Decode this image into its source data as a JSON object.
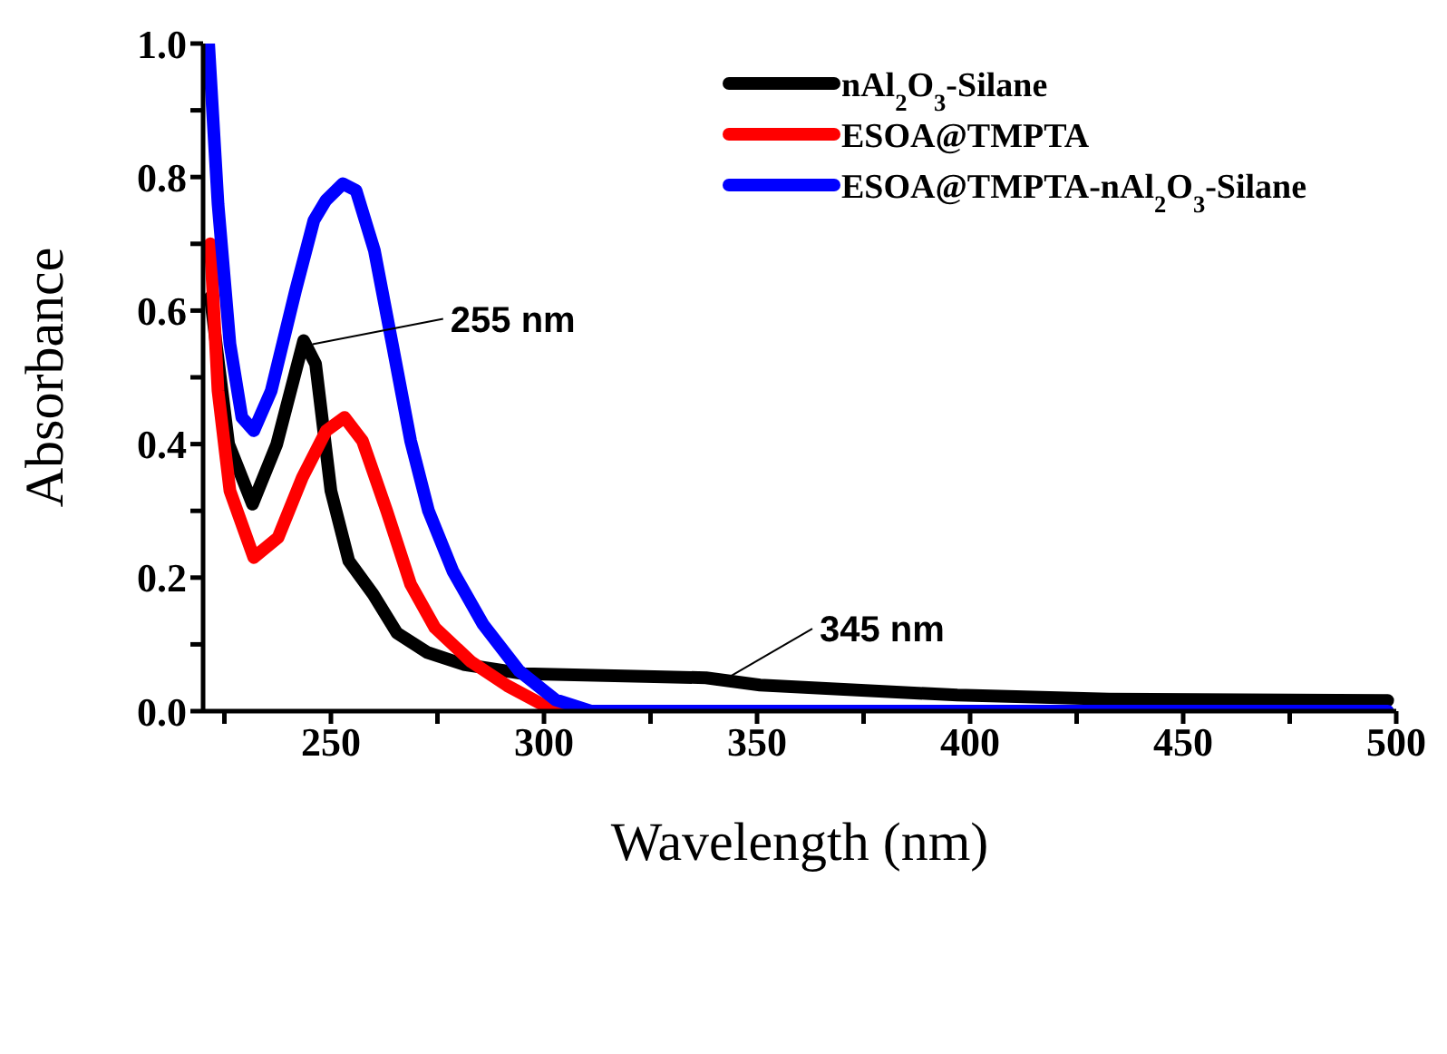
{
  "chart_data": {
    "type": "line",
    "xlabel": "Wavelength (nm)",
    "ylabel": "Absorbance",
    "xlim": [
      220,
      500
    ],
    "ylim": [
      0,
      1
    ],
    "xticks": [
      {
        "value": 225,
        "label": null
      },
      250,
      {
        "value": 275,
        "label": null
      },
      300,
      {
        "value": 325,
        "label": null
      },
      350,
      {
        "value": 375,
        "label": null
      },
      400,
      {
        "value": 425,
        "label": null
      },
      450,
      {
        "value": 475,
        "label": null
      },
      500
    ],
    "yticks": [
      {
        "value": 0,
        "label": "0.0"
      },
      {
        "value": 0.1,
        "label": null
      },
      0.2,
      {
        "value": 0.3,
        "label": null
      },
      0.4,
      {
        "value": 0.5,
        "label": null
      },
      0.6,
      {
        "value": 0.7,
        "label": null
      },
      0.8,
      {
        "value": 0.9,
        "label": null
      },
      {
        "value": 1,
        "label": "1.0"
      }
    ],
    "legend": "top right",
    "marker": "none",
    "line_style": "solid",
    "series": [
      {
        "name": "nAl$_{2}$O$_{3}$-Silane",
        "color": "#000000",
        "x": [
          221.7,
          226,
          231.6,
          237.3,
          243.6,
          246.4,
          250,
          254.2,
          259.9,
          265.5,
          272.6,
          281.1,
          295.3,
          323.6,
          338,
          350.7,
          397,
          432.6,
          498
        ],
        "values": [
          0.62,
          0.4,
          0.31,
          0.4,
          0.555,
          0.52,
          0.33,
          0.225,
          0.175,
          0.117,
          0.088,
          0.07,
          0.056,
          0.052,
          0.05,
          0.039,
          0.024,
          0.018,
          0.016
        ]
      },
      {
        "name": "ESOA@TMPTA",
        "color": "#ff0000",
        "x": [
          221.7,
          223.5,
          226.3,
          231.9,
          237.6,
          243.3,
          248.9,
          253.2,
          257.4,
          263.1,
          268.7,
          274.4,
          282.9,
          291.4,
          299.9,
          308.4
        ],
        "values": [
          0.7,
          0.48,
          0.33,
          0.23,
          0.26,
          0.35,
          0.42,
          0.44,
          0.405,
          0.3,
          0.19,
          0.125,
          0.074,
          0.038,
          0.009,
          0
        ]
      },
      {
        "name": "ESOA@TMPTA-nAl$_{2}$O$_{3}$-Silane",
        "color": "#0000ff",
        "x": [
          221.3,
          223.5,
          226.3,
          229.1,
          231.9,
          236,
          241.7,
          246,
          248.8,
          252.8,
          255.9,
          260.2,
          264.4,
          268.7,
          272.9,
          278.6,
          285.7,
          294.2,
          302.7,
          311,
          350,
          400,
          450,
          498
        ],
        "values": [
          1,
          0.76,
          0.55,
          0.44,
          0.42,
          0.48,
          0.63,
          0.735,
          0.765,
          0.79,
          0.78,
          0.69,
          0.55,
          0.405,
          0.3,
          0.21,
          0.13,
          0.06,
          0.017,
          0,
          0,
          0,
          0,
          0
        ]
      }
    ],
    "annotations": [
      {
        "text": "255 nm",
        "x": 244,
        "y": 0.555
      },
      {
        "text": "345 nm",
        "x": 340,
        "y": 0.05
      }
    ]
  }
}
